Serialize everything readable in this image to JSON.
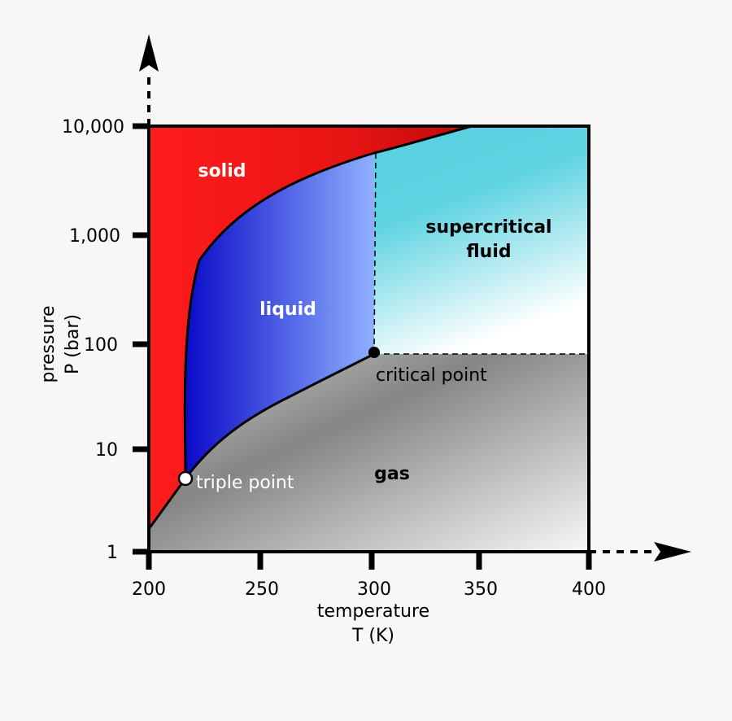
{
  "chart_data": {
    "type": "phase-diagram",
    "x_axis": {
      "title_line1": "temperature",
      "title_line2": "T (K)",
      "ticks": [
        "200",
        "250",
        "300",
        "350",
        "400"
      ],
      "range": [
        200,
        400
      ]
    },
    "y_axis": {
      "title_line1": "pressure",
      "title_line2": "P (bar)",
      "ticks": [
        "1",
        "10",
        "100",
        "1,000",
        "10,000"
      ],
      "range": [
        1,
        10000
      ],
      "scale": "log"
    },
    "regions": {
      "solid": "solid",
      "liquid": "liquid",
      "gas": "gas",
      "supercritical_line1": "supercritical",
      "supercritical_line2": "fluid"
    },
    "points": {
      "triple_point": {
        "label": "triple point",
        "T": 216.6,
        "P": 5.1
      },
      "critical_point": {
        "label": "critical point",
        "T": 301,
        "P": 78
      }
    },
    "colors": {
      "solid": "#ff1a1a",
      "liquid": "#1a1acc",
      "gas": "#808080",
      "supercritical": "#55d0e0"
    }
  }
}
